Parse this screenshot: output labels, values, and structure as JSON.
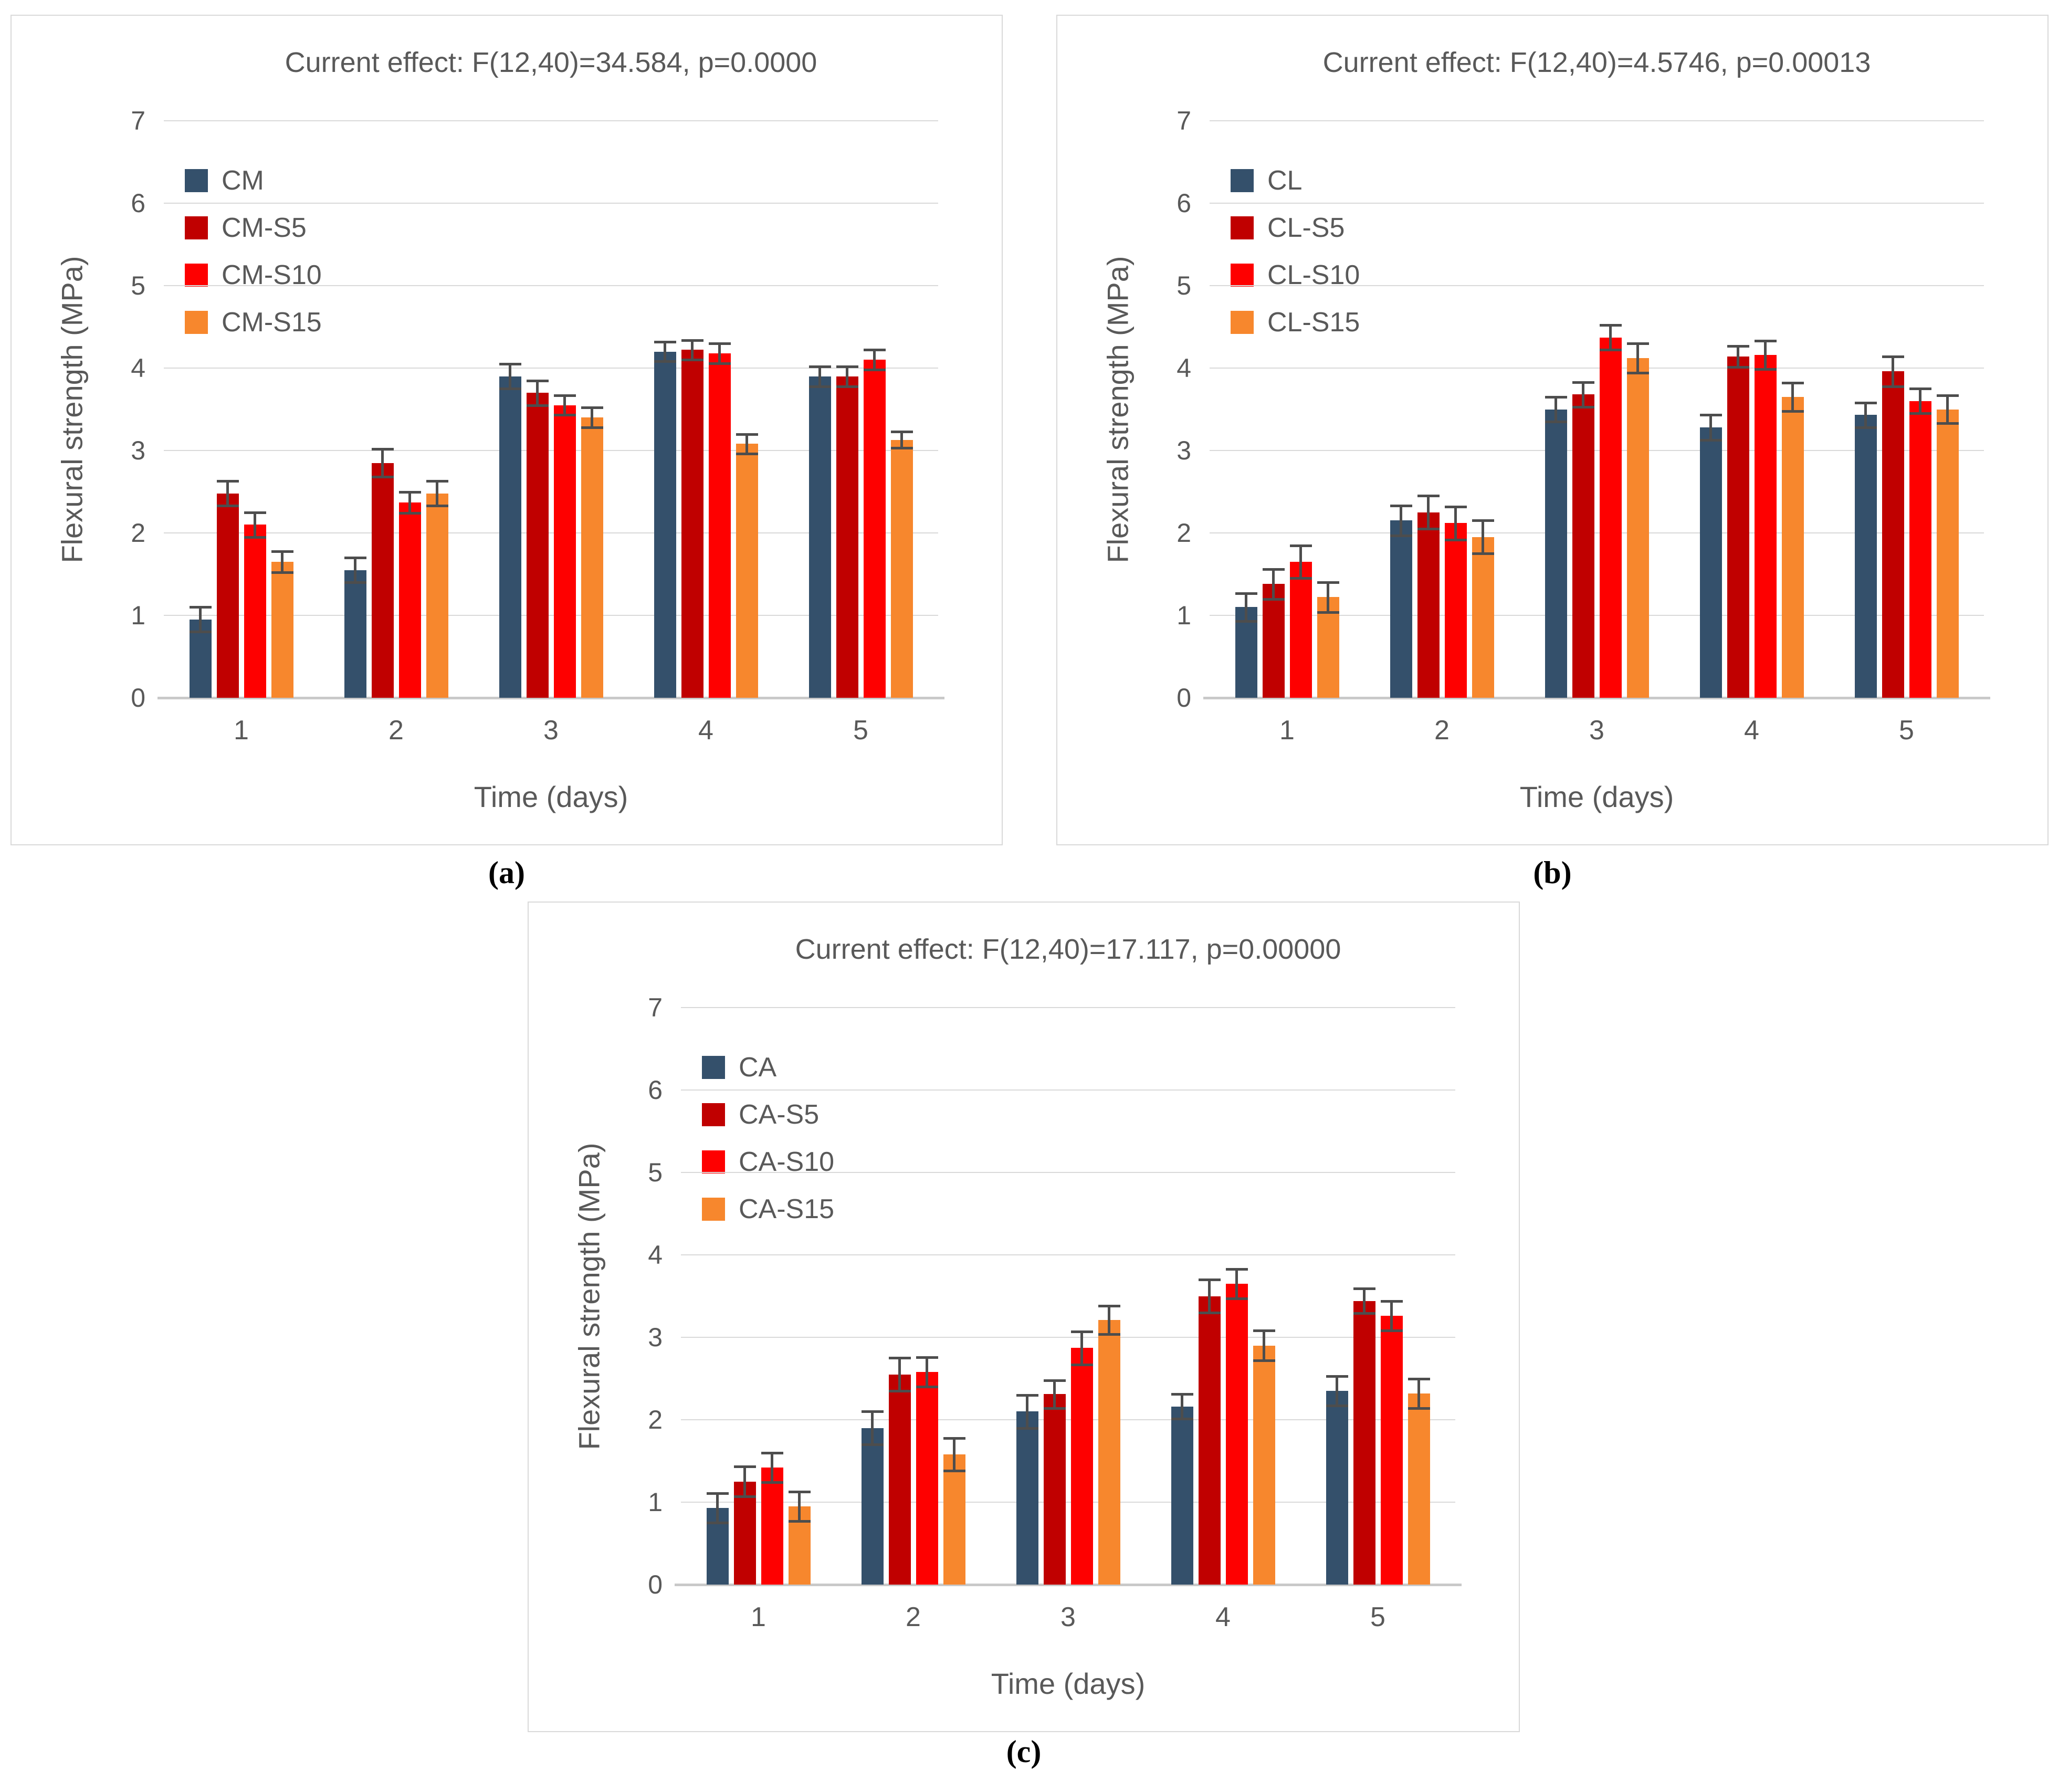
{
  "colors": {
    "grid": "#d9d9d9",
    "axis_line": "#c9c9c9",
    "text": "#595959",
    "error_bar": "#4d4d4d",
    "panel_border": "#d9d9d9",
    "series_palette": [
      "#34506b",
      "#c00000",
      "#fe0000",
      "#f7872d"
    ]
  },
  "chart_data": [
    {
      "type": "bar",
      "panel_label": "(a)",
      "title": "Current effect: F(12,40)=34.584, p=0.0000",
      "xlabel": "Time (days)",
      "ylabel": "Flexural strength (MPa)",
      "ylim": [
        0,
        7
      ],
      "y_ticks": [
        0,
        1,
        2,
        3,
        4,
        5,
        6,
        7
      ],
      "grid": true,
      "legend_position": "upper-left-vertical",
      "categories": [
        "1",
        "2",
        "3",
        "4",
        "5"
      ],
      "series": [
        {
          "name": "CM",
          "color": "#34506b",
          "values": [
            0.95,
            1.55,
            3.9,
            4.2,
            3.9
          ],
          "errors": [
            0.15,
            0.15,
            0.15,
            0.12,
            0.12
          ]
        },
        {
          "name": "CM-S5",
          "color": "#c00000",
          "values": [
            2.48,
            2.85,
            3.7,
            4.22,
            3.9
          ],
          "errors": [
            0.15,
            0.17,
            0.15,
            0.12,
            0.12
          ]
        },
        {
          "name": "CM-S10",
          "color": "#fe0000",
          "values": [
            2.1,
            2.37,
            3.55,
            4.18,
            4.1
          ],
          "errors": [
            0.15,
            0.13,
            0.12,
            0.12,
            0.12
          ]
        },
        {
          "name": "CM-S15",
          "color": "#f7872d",
          "values": [
            1.65,
            2.48,
            3.4,
            3.08,
            3.13
          ],
          "errors": [
            0.13,
            0.15,
            0.12,
            0.12,
            0.1
          ]
        }
      ]
    },
    {
      "type": "bar",
      "panel_label": "(b)",
      "title": "Current effect: F(12,40)=4.5746, p=0.00013",
      "xlabel": "Time (days)",
      "ylabel": "Flexural strength (MPa)",
      "ylim": [
        0,
        7
      ],
      "y_ticks": [
        0,
        1,
        2,
        3,
        4,
        5,
        6,
        7
      ],
      "grid": true,
      "legend_position": "upper-left-vertical",
      "categories": [
        "1",
        "2",
        "3",
        "4",
        "5"
      ],
      "series": [
        {
          "name": "CL",
          "color": "#34506b",
          "values": [
            1.1,
            2.15,
            3.5,
            3.28,
            3.43
          ],
          "errors": [
            0.17,
            0.18,
            0.15,
            0.15,
            0.15
          ]
        },
        {
          "name": "CL-S5",
          "color": "#c00000",
          "values": [
            1.38,
            2.25,
            3.68,
            4.14,
            3.96
          ],
          "errors": [
            0.18,
            0.2,
            0.15,
            0.13,
            0.18
          ]
        },
        {
          "name": "CL-S10",
          "color": "#fe0000",
          "values": [
            1.65,
            2.12,
            4.37,
            4.16,
            3.6
          ],
          "errors": [
            0.2,
            0.2,
            0.15,
            0.17,
            0.15
          ]
        },
        {
          "name": "CL-S15",
          "color": "#f7872d",
          "values": [
            1.22,
            1.95,
            4.12,
            3.65,
            3.5
          ],
          "errors": [
            0.18,
            0.2,
            0.18,
            0.17,
            0.17
          ]
        }
      ]
    },
    {
      "type": "bar",
      "panel_label": "(c)",
      "title": "Current effect: F(12,40)=17.117, p=0.00000",
      "xlabel": "Time (days)",
      "ylabel": "Flexural strength (MPa)",
      "ylim": [
        0,
        7
      ],
      "y_ticks": [
        0,
        1,
        2,
        3,
        4,
        5,
        6,
        7
      ],
      "grid": true,
      "legend_position": "upper-left-vertical",
      "categories": [
        "1",
        "2",
        "3",
        "4",
        "5"
      ],
      "series": [
        {
          "name": "CA",
          "color": "#34506b",
          "values": [
            0.93,
            1.9,
            2.1,
            2.16,
            2.35
          ],
          "errors": [
            0.18,
            0.2,
            0.2,
            0.15,
            0.18
          ]
        },
        {
          "name": "CA-S5",
          "color": "#c00000",
          "values": [
            1.25,
            2.55,
            2.31,
            3.5,
            3.44
          ],
          "errors": [
            0.18,
            0.2,
            0.17,
            0.2,
            0.15
          ]
        },
        {
          "name": "CA-S10",
          "color": "#fe0000",
          "values": [
            1.42,
            2.58,
            2.87,
            3.65,
            3.26
          ],
          "errors": [
            0.18,
            0.18,
            0.2,
            0.18,
            0.18
          ]
        },
        {
          "name": "CA-S15",
          "color": "#f7872d",
          "values": [
            0.95,
            1.58,
            3.21,
            2.9,
            2.32
          ],
          "errors": [
            0.18,
            0.2,
            0.17,
            0.18,
            0.18
          ]
        }
      ]
    }
  ]
}
